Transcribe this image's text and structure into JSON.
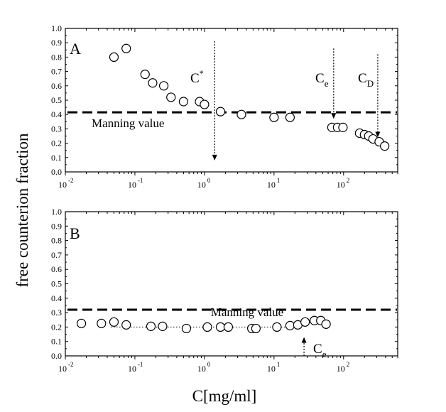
{
  "chart_data": [
    {
      "panel": "A",
      "type": "scatter",
      "xscale": "log",
      "xlim": [
        0.01,
        600
      ],
      "ylim": [
        0,
        1.0
      ],
      "x_tick_labels": [
        "10",
        "10",
        "10",
        "10",
        "10"
      ],
      "x_tick_exponents": [
        "-2",
        "-1",
        "0",
        "1",
        "2"
      ],
      "y_tick_labels": [
        "0.0",
        "0.1",
        "0.2",
        "0.3",
        "0.4",
        "0.5",
        "0.6",
        "0.7",
        "0.8",
        "0.9",
        "1.0"
      ],
      "panel_label": "A",
      "points": [
        {
          "x": 0.05,
          "y": 0.8
        },
        {
          "x": 0.075,
          "y": 0.86
        },
        {
          "x": 0.14,
          "y": 0.68
        },
        {
          "x": 0.18,
          "y": 0.62
        },
        {
          "x": 0.26,
          "y": 0.6
        },
        {
          "x": 0.33,
          "y": 0.52
        },
        {
          "x": 0.5,
          "y": 0.49
        },
        {
          "x": 0.85,
          "y": 0.49
        },
        {
          "x": 1.0,
          "y": 0.47
        },
        {
          "x": 1.7,
          "y": 0.42
        },
        {
          "x": 3.4,
          "y": 0.4
        },
        {
          "x": 10,
          "y": 0.38
        },
        {
          "x": 17,
          "y": 0.38
        },
        {
          "x": 68,
          "y": 0.31
        },
        {
          "x": 82,
          "y": 0.31
        },
        {
          "x": 98,
          "y": 0.31
        },
        {
          "x": 170,
          "y": 0.27
        },
        {
          "x": 200,
          "y": 0.26
        },
        {
          "x": 230,
          "y": 0.25
        },
        {
          "x": 265,
          "y": 0.23
        },
        {
          "x": 325,
          "y": 0.21
        },
        {
          "x": 390,
          "y": 0.18
        }
      ],
      "manning_value": 0.415,
      "manning_label": "Manning value",
      "annotations": [
        {
          "base": "C",
          "superscript": "*",
          "subscript": "",
          "x": 1.4,
          "y_from": 0.91,
          "y_to": 0.08
        },
        {
          "base": "C",
          "superscript": "",
          "subscript": "e",
          "x": 72,
          "y_from": 0.86,
          "y_to": 0.37
        },
        {
          "base": "C",
          "superscript": "",
          "subscript": "D",
          "x": 310,
          "y_from": 0.82,
          "y_to": 0.24
        }
      ]
    },
    {
      "panel": "B",
      "type": "scatter",
      "xscale": "log",
      "xlim": [
        0.01,
        600
      ],
      "ylim": [
        0,
        1.0
      ],
      "x_tick_labels": [
        "10",
        "10",
        "10",
        "10",
        "10"
      ],
      "x_tick_exponents": [
        "-2",
        "-1",
        "0",
        "1",
        "2"
      ],
      "y_tick_labels": [
        "0.0",
        "0.1",
        "0.2",
        "0.3",
        "0.4",
        "0.5",
        "0.6",
        "0.7",
        "0.8",
        "0.9",
        "1.0"
      ],
      "panel_label": "B",
      "points": [
        {
          "x": 0.017,
          "y": 0.225
        },
        {
          "x": 0.033,
          "y": 0.225
        },
        {
          "x": 0.05,
          "y": 0.235
        },
        {
          "x": 0.075,
          "y": 0.215
        },
        {
          "x": 0.17,
          "y": 0.205
        },
        {
          "x": 0.25,
          "y": 0.205
        },
        {
          "x": 0.55,
          "y": 0.19
        },
        {
          "x": 1.1,
          "y": 0.2
        },
        {
          "x": 1.7,
          "y": 0.2
        },
        {
          "x": 2.2,
          "y": 0.2
        },
        {
          "x": 4.8,
          "y": 0.19
        },
        {
          "x": 5.5,
          "y": 0.19
        },
        {
          "x": 11,
          "y": 0.2
        },
        {
          "x": 17,
          "y": 0.21
        },
        {
          "x": 22,
          "y": 0.215
        },
        {
          "x": 28,
          "y": 0.235
        },
        {
          "x": 38,
          "y": 0.245
        },
        {
          "x": 47,
          "y": 0.245
        },
        {
          "x": 56,
          "y": 0.22
        }
      ],
      "dotted_fit": {
        "x_from": 0.045,
        "x_to": 25,
        "y": 0.2
      },
      "manning_value": 0.32,
      "manning_label": "Manning value",
      "annotations": [
        {
          "base": "C",
          "superscript": "",
          "subscript": "e",
          "x": 27,
          "y_from": 0.0,
          "y_to": 0.13
        }
      ]
    }
  ],
  "labels": {
    "ylabel": "free counterion fraction",
    "xlabel": "C[mg/ml]"
  }
}
